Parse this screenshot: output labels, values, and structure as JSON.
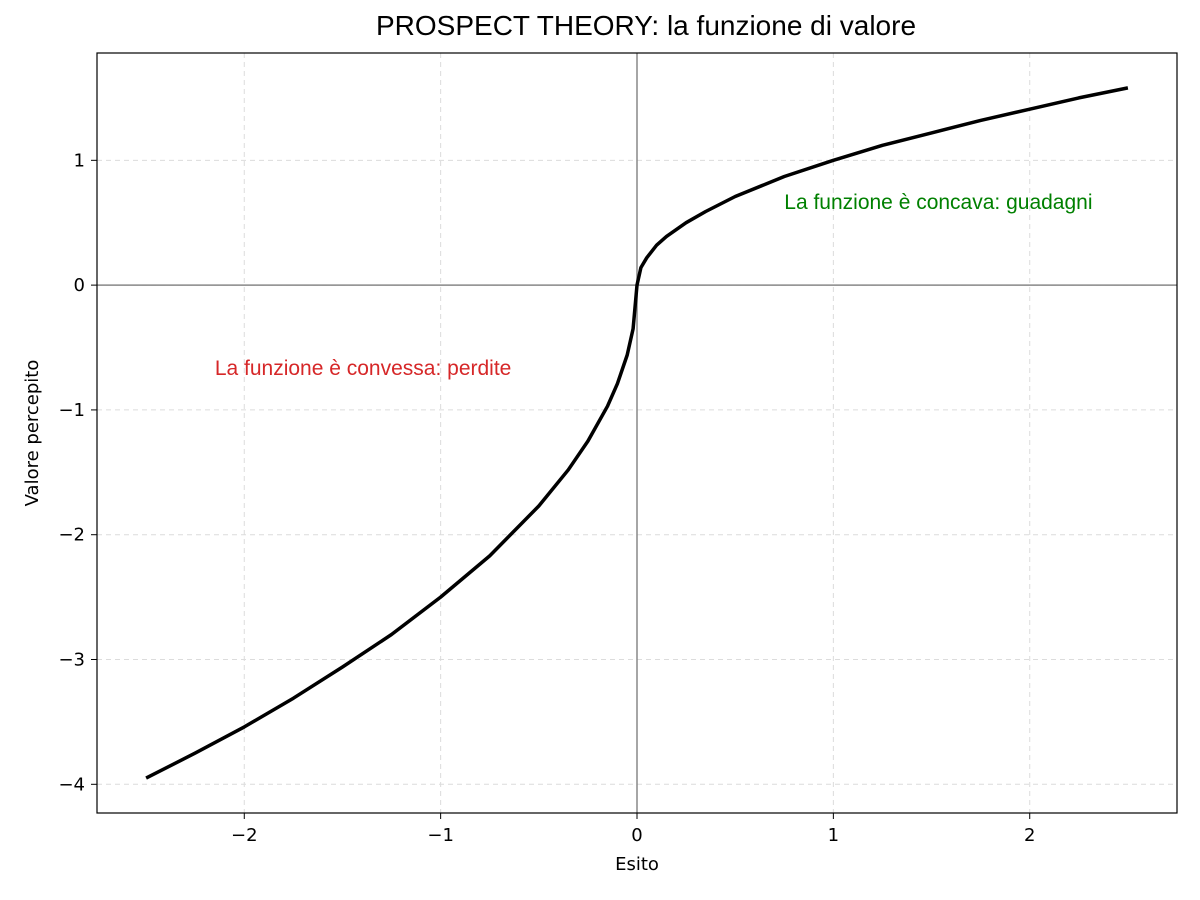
{
  "chart_data": {
    "type": "line",
    "title": "PROSPECT THEORY: la funzione di valore",
    "xlabel": "Esito",
    "ylabel": "Valore percepito",
    "xlim": [
      -2.75,
      2.75
    ],
    "ylim": [
      -4.23,
      1.86
    ],
    "xticks": [
      -2,
      -1,
      0,
      1,
      2
    ],
    "xtick_labels": [
      "−2",
      "−1",
      "0",
      "1",
      "2"
    ],
    "yticks": [
      -4,
      -3,
      -2,
      -1,
      0,
      1
    ],
    "ytick_labels": [
      "−4",
      "−3",
      "−2",
      "−1",
      "0",
      "1"
    ],
    "grid": true,
    "reference_lines": {
      "x": 0,
      "y": 0,
      "color": "#888888"
    },
    "series": [
      {
        "color": "#000000",
        "x": [
          -2.5,
          -2.25,
          -2.0,
          -1.75,
          -1.5,
          -1.25,
          -1.0,
          -0.75,
          -0.5,
          -0.35,
          -0.25,
          -0.15,
          -0.1,
          -0.05,
          -0.02,
          0.0,
          0.02,
          0.05,
          0.1,
          0.15,
          0.25,
          0.35,
          0.5,
          0.75,
          1.0,
          1.25,
          1.5,
          1.75,
          2.0,
          2.25,
          2.5
        ],
        "y": [
          -3.95,
          -3.75,
          -3.54,
          -3.31,
          -3.06,
          -2.8,
          -2.5,
          -2.17,
          -1.77,
          -1.48,
          -1.25,
          -0.97,
          -0.79,
          -0.56,
          -0.35,
          0.0,
          0.14,
          0.22,
          0.32,
          0.39,
          0.5,
          0.59,
          0.71,
          0.87,
          1.0,
          1.12,
          1.22,
          1.32,
          1.41,
          1.5,
          1.58
        ]
      }
    ],
    "annotations": [
      {
        "text": "La funzione è concava: guadagni",
        "x": 0.75,
        "y": 0.61,
        "color": "#008000"
      },
      {
        "text": "La funzione è convessa: perdite",
        "x": -2.15,
        "y": -0.72,
        "color": "#d62728"
      }
    ]
  }
}
